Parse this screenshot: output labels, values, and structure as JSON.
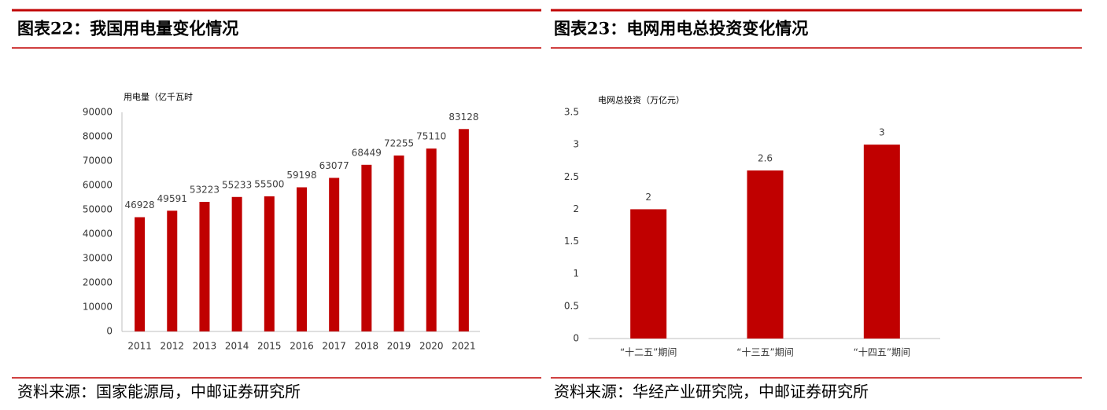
{
  "chart_data": [
    {
      "type": "bar",
      "title": "图表22：我国用电量变化情况",
      "y_label": "用电量（亿千瓦时",
      "categories": [
        "2011",
        "2012",
        "2013",
        "2014",
        "2015",
        "2016",
        "2017",
        "2018",
        "2019",
        "2020",
        "2021"
      ],
      "values": [
        46928,
        49591,
        53223,
        55233,
        55500,
        59198,
        63077,
        68449,
        72255,
        75110,
        83128
      ],
      "color": "#c00000",
      "ylim": [
        0,
        90000
      ],
      "yticks": [
        0,
        10000,
        20000,
        30000,
        40000,
        50000,
        60000,
        70000,
        80000,
        90000
      ],
      "grid": false,
      "source": "资料来源：国家能源局，中邮证券研究所"
    },
    {
      "type": "bar",
      "title": "图表23：电网用电总投资变化情况",
      "y_label": "电网总投资（万亿元）",
      "categories": [
        "“十二五”期间",
        "“十三五”期间",
        "“十四五”期间"
      ],
      "values": [
        2,
        2.6,
        3
      ],
      "color": "#c00000",
      "ylim": [
        0,
        3.5
      ],
      "yticks": [
        0,
        0.5,
        1,
        1.5,
        2,
        2.5,
        3,
        3.5
      ],
      "grid": false,
      "source": "资料来源：华经产业研究院，中邮证券研究所"
    }
  ]
}
